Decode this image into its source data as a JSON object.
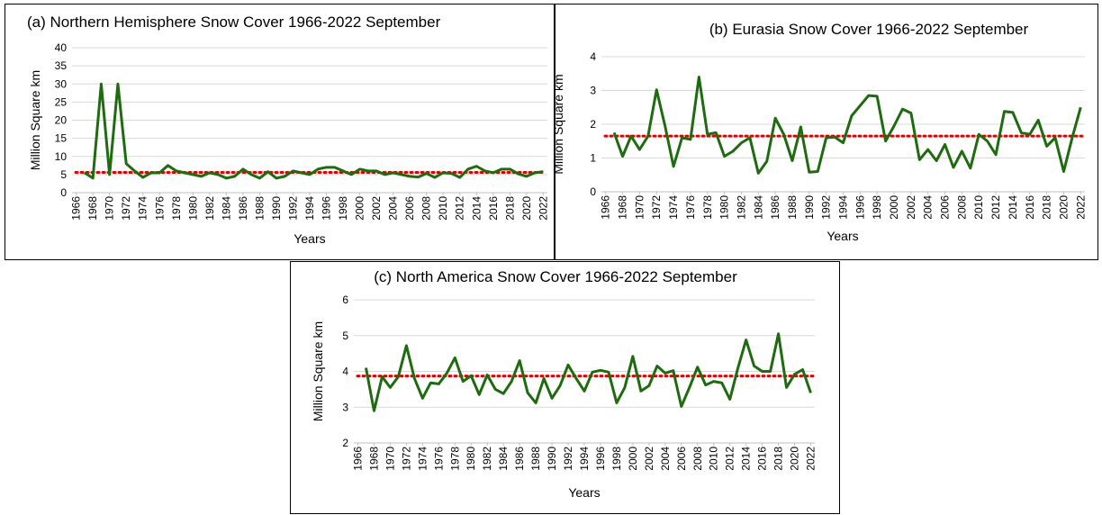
{
  "chart_data": [
    {
      "type": "line",
      "title": "(a) Northern Hemisphere Snow Cover 1966-2022 September",
      "xlabel": "Years",
      "ylabel": "Million Square km",
      "x": [
        1967,
        1968,
        1969,
        1970,
        1971,
        1972,
        1973,
        1974,
        1975,
        1976,
        1977,
        1978,
        1979,
        1980,
        1981,
        1982,
        1983,
        1984,
        1985,
        1986,
        1987,
        1988,
        1989,
        1990,
        1991,
        1992,
        1993,
        1994,
        1995,
        1996,
        1997,
        1998,
        1999,
        2000,
        2001,
        2002,
        2003,
        2004,
        2005,
        2006,
        2007,
        2008,
        2009,
        2010,
        2011,
        2012,
        2013,
        2014,
        2015,
        2016,
        2017,
        2018,
        2019,
        2020,
        2021,
        2022
      ],
      "series": [
        {
          "color": "#1e6b10",
          "values": [
            5.5,
            4,
            30,
            5,
            30,
            8,
            6,
            4.2,
            5.5,
            5.5,
            7.5,
            6,
            5.5,
            5,
            4.5,
            5.5,
            5,
            4,
            4.5,
            6.5,
            5,
            4,
            5.8,
            4,
            4.5,
            6,
            5.5,
            5,
            6.5,
            7,
            7,
            6,
            5,
            6.5,
            6,
            6,
            5,
            5.5,
            5,
            4.5,
            4.3,
            5.3,
            4.2,
            5.5,
            5.3,
            4.2,
            6.5,
            7.3,
            6,
            5.5,
            6.5,
            6.5,
            5.2,
            4.5,
            5.5,
            5.8
          ]
        }
      ],
      "reference_line": 5.6,
      "reference_color": "#e00000",
      "xlim": [
        1965.5,
        2022.5
      ],
      "xticks": [
        1966,
        1968,
        1970,
        1972,
        1974,
        1976,
        1978,
        1980,
        1982,
        1984,
        1986,
        1988,
        1990,
        1992,
        1994,
        1996,
        1998,
        2000,
        2002,
        2004,
        2006,
        2008,
        2010,
        2012,
        2014,
        2016,
        2018,
        2020,
        2022
      ],
      "ylim": [
        0,
        40
      ],
      "yticks": [
        0,
        5,
        10,
        15,
        20,
        25,
        30,
        35,
        40
      ],
      "grid": true
    },
    {
      "type": "line",
      "title": "(b) Eurasia Snow Cover 1966-2022 September",
      "xlabel": "Years",
      "ylabel": "Million Square km",
      "x": [
        1967,
        1968,
        1969,
        1970,
        1971,
        1972,
        1973,
        1974,
        1975,
        1976,
        1977,
        1978,
        1979,
        1980,
        1981,
        1982,
        1983,
        1984,
        1985,
        1986,
        1987,
        1988,
        1989,
        1990,
        1991,
        1992,
        1993,
        1994,
        1995,
        1996,
        1997,
        1998,
        1999,
        2000,
        2001,
        2002,
        2003,
        2004,
        2005,
        2006,
        2007,
        2008,
        2009,
        2010,
        2011,
        2012,
        2013,
        2014,
        2015,
        2016,
        2017,
        2018,
        2019,
        2020,
        2021,
        2022
      ],
      "series": [
        {
          "color": "#1e6b10",
          "values": [
            1.75,
            1.05,
            1.65,
            1.25,
            1.65,
            3.02,
            1.95,
            0.75,
            1.6,
            1.55,
            3.4,
            1.7,
            1.75,
            1.05,
            1.2,
            1.45,
            1.6,
            0.55,
            0.9,
            2.18,
            1.7,
            0.92,
            1.92,
            0.58,
            0.6,
            1.6,
            1.62,
            1.45,
            2.25,
            2.55,
            2.85,
            2.83,
            1.5,
            1.95,
            2.45,
            2.33,
            0.95,
            1.25,
            0.92,
            1.4,
            0.72,
            1.2,
            0.7,
            1.7,
            1.5,
            1.1,
            2.38,
            2.35,
            1.75,
            1.7,
            2.12,
            1.35,
            1.6,
            0.6,
            1.6,
            2.5
          ]
        }
      ],
      "reference_line": 1.65,
      "reference_color": "#e00000",
      "xlim": [
        1965.5,
        2022.5
      ],
      "xticks": [
        1966,
        1968,
        1970,
        1972,
        1974,
        1976,
        1978,
        1980,
        1982,
        1984,
        1986,
        1988,
        1990,
        1992,
        1994,
        1996,
        1998,
        2000,
        2002,
        2004,
        2006,
        2008,
        2010,
        2012,
        2014,
        2016,
        2018,
        2020,
        2022
      ],
      "ylim": [
        0,
        4
      ],
      "yticks": [
        0,
        1,
        2,
        3,
        4
      ],
      "grid": true
    },
    {
      "type": "line",
      "title": "(c) North America Snow Cover 1966-2022 September",
      "xlabel": "Years",
      "ylabel": "Million Square km",
      "x": [
        1967,
        1968,
        1969,
        1970,
        1971,
        1972,
        1973,
        1974,
        1975,
        1976,
        1977,
        1978,
        1979,
        1980,
        1981,
        1982,
        1983,
        1984,
        1985,
        1986,
        1987,
        1988,
        1989,
        1990,
        1991,
        1992,
        1993,
        1994,
        1995,
        1996,
        1997,
        1998,
        1999,
        2000,
        2001,
        2002,
        2003,
        2004,
        2005,
        2006,
        2007,
        2008,
        2009,
        2010,
        2011,
        2012,
        2013,
        2014,
        2015,
        2016,
        2017,
        2018,
        2019,
        2020,
        2021,
        2022
      ],
      "series": [
        {
          "color": "#1e6b10",
          "values": [
            4.1,
            2.9,
            3.85,
            3.55,
            3.85,
            4.72,
            3.8,
            3.25,
            3.68,
            3.65,
            3.95,
            4.38,
            3.72,
            3.88,
            3.35,
            3.9,
            3.5,
            3.38,
            3.72,
            4.3,
            3.4,
            3.12,
            3.8,
            3.25,
            3.6,
            4.18,
            3.8,
            3.45,
            3.98,
            4.03,
            3.98,
            3.12,
            3.55,
            4.42,
            3.45,
            3.6,
            4.15,
            3.95,
            4.02,
            3.02,
            3.55,
            4.12,
            3.62,
            3.72,
            3.68,
            3.22,
            4.1,
            4.88,
            4.15,
            4,
            4,
            5.05,
            3.55,
            3.92,
            4.05,
            3.4
          ]
        }
      ],
      "reference_line": 3.87,
      "reference_color": "#e00000",
      "xlim": [
        1965.5,
        2022.5
      ],
      "xticks": [
        1966,
        1968,
        1970,
        1972,
        1974,
        1976,
        1978,
        1980,
        1982,
        1984,
        1986,
        1988,
        1990,
        1992,
        1994,
        1996,
        1998,
        2000,
        2002,
        2004,
        2006,
        2008,
        2010,
        2012,
        2014,
        2016,
        2018,
        2020,
        2022
      ],
      "ylim": [
        2,
        6
      ],
      "yticks": [
        2,
        3,
        4,
        5,
        6
      ],
      "grid": true
    }
  ]
}
